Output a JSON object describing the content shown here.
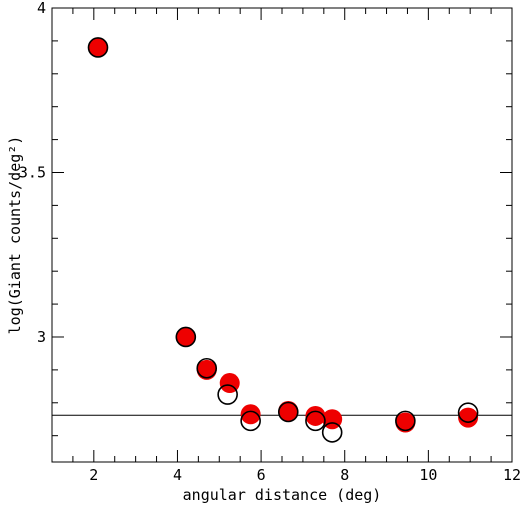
{
  "chart_data": {
    "type": "scatter",
    "title": "",
    "xlabel": "angular distance (deg)",
    "ylabel": "log(Giant counts/deg²)",
    "xlim": [
      1,
      12
    ],
    "ylim": [
      2.62,
      4.0
    ],
    "x_ticks": [
      2,
      4,
      6,
      8,
      10,
      12
    ],
    "y_ticks": [
      3,
      3.5,
      4
    ],
    "x_tick_labels": [
      "2",
      "4",
      "6",
      "8",
      "10",
      "12"
    ],
    "y_tick_labels": [
      "3",
      "3.5",
      "4"
    ],
    "grid": false,
    "legend": "none",
    "series": [
      {
        "marker": "filled-circle",
        "color": "#ee0000",
        "points": [
          {
            "x": 2.1,
            "y": 3.88
          },
          {
            "x": 4.2,
            "y": 3.0
          },
          {
            "x": 4.7,
            "y": 2.9
          },
          {
            "x": 5.25,
            "y": 2.86
          },
          {
            "x": 5.75,
            "y": 2.765
          },
          {
            "x": 6.65,
            "y": 2.775
          },
          {
            "x": 7.3,
            "y": 2.76
          },
          {
            "x": 7.7,
            "y": 2.75
          },
          {
            "x": 9.45,
            "y": 2.74
          },
          {
            "x": 10.95,
            "y": 2.755
          }
        ]
      },
      {
        "marker": "open-circle",
        "color": "#000000",
        "points": [
          {
            "x": 2.1,
            "y": 3.88
          },
          {
            "x": 4.2,
            "y": 3.0
          },
          {
            "x": 4.7,
            "y": 2.905
          },
          {
            "x": 5.2,
            "y": 2.825
          },
          {
            "x": 5.75,
            "y": 2.745
          },
          {
            "x": 6.65,
            "y": 2.772
          },
          {
            "x": 7.3,
            "y": 2.745
          },
          {
            "x": 7.7,
            "y": 2.71
          },
          {
            "x": 9.45,
            "y": 2.745
          },
          {
            "x": 10.95,
            "y": 2.77
          }
        ]
      }
    ],
    "reference_line": {
      "y": 2.762,
      "color": "#000000"
    }
  }
}
